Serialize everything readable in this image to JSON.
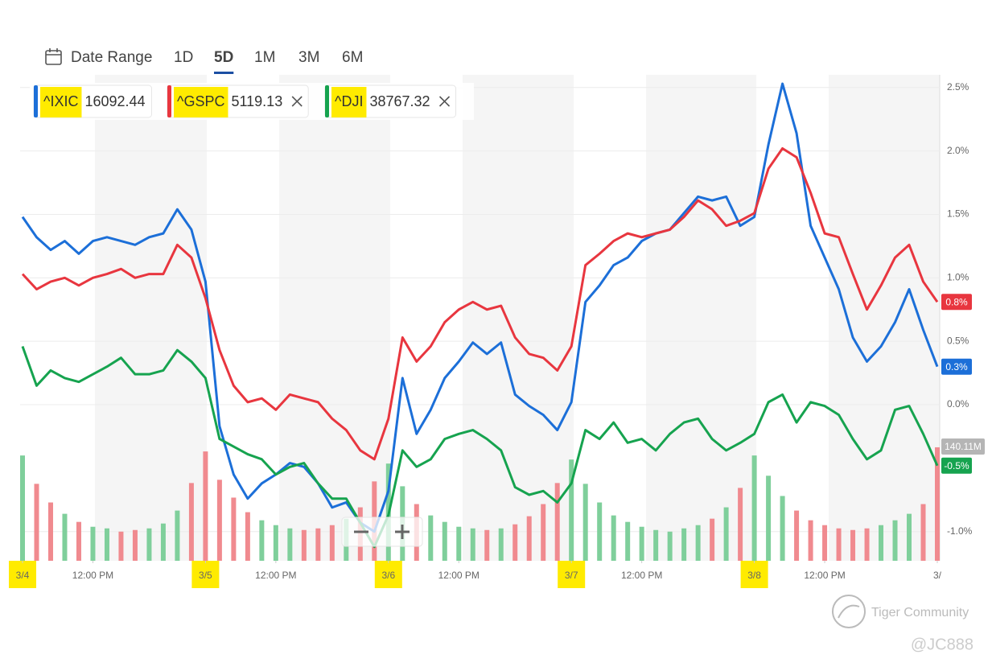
{
  "nav": {
    "label": "Date Range",
    "ranges": [
      "1D",
      "5D",
      "1M",
      "3M",
      "6M"
    ],
    "selected": 1
  },
  "chart_data": {
    "type": "line",
    "x": [
      0,
      1,
      2,
      3,
      4,
      5,
      6,
      7,
      8,
      9,
      10,
      11,
      12,
      13,
      14,
      15,
      16,
      17,
      18,
      19,
      20,
      21,
      22,
      23,
      24,
      25,
      26,
      27,
      28,
      29,
      30,
      31,
      32,
      33,
      34,
      35,
      36,
      37,
      38,
      39,
      40,
      41,
      42,
      43,
      44,
      45,
      46,
      47,
      48,
      49,
      50,
      51,
      52,
      53,
      54,
      55,
      56,
      57,
      58,
      59,
      60,
      61,
      62,
      63,
      64,
      65
    ],
    "xlim": [
      0,
      65
    ],
    "xticks": [
      {
        "value": 0,
        "label": "3/4"
      },
      {
        "value": 5,
        "label": "12:00 PM"
      },
      {
        "value": 13,
        "label": "3/5"
      },
      {
        "value": 18,
        "label": "12:00 PM"
      },
      {
        "value": 26,
        "label": "3/6"
      },
      {
        "value": 31,
        "label": "12:00 PM"
      },
      {
        "value": 39,
        "label": "3/7"
      },
      {
        "value": 44,
        "label": "12:00 PM"
      },
      {
        "value": 52,
        "label": "3/8"
      },
      {
        "value": 57,
        "label": "12:00 PM"
      },
      {
        "value": 65,
        "label": "3/"
      }
    ],
    "ylim": [
      -1.23,
      2.6
    ],
    "yticks": [
      {
        "value": 2.5,
        "label": "2.5%"
      },
      {
        "value": 2.0,
        "label": "2.0%"
      },
      {
        "value": 1.5,
        "label": "1.5%"
      },
      {
        "value": 1.0,
        "label": "1.0%"
      },
      {
        "value": 0.5,
        "label": "0.5%"
      },
      {
        "value": 0,
        "label": "0.0%"
      },
      {
        "value": -1.0,
        "label": "-1.0%"
      }
    ],
    "grid": true,
    "series": [
      {
        "name": "^IXIC",
        "quote": "16092.44",
        "color": "#1c6fd8",
        "last_label": "0.3%",
        "values": [
          1.48,
          1.32,
          1.22,
          1.29,
          1.19,
          1.29,
          1.32,
          1.29,
          1.26,
          1.32,
          1.35,
          1.54,
          1.38,
          0.97,
          -0.17,
          -0.55,
          -0.74,
          -0.62,
          -0.55,
          -0.46,
          -0.49,
          -0.62,
          -0.81,
          -0.77,
          -0.93,
          -1.0,
          -0.68,
          0.21,
          -0.23,
          -0.04,
          0.21,
          0.34,
          0.49,
          0.4,
          0.49,
          0.08,
          -0.01,
          -0.08,
          -0.2,
          0.02,
          0.81,
          0.94,
          1.1,
          1.16,
          1.29,
          1.35,
          1.38,
          1.51,
          1.64,
          1.61,
          1.64,
          1.41,
          1.48,
          2.05,
          2.53,
          2.14,
          1.41,
          1.16,
          0.91,
          0.53,
          0.34,
          0.46,
          0.65,
          0.91,
          0.59,
          0.3
        ]
      },
      {
        "name": "^GSPC",
        "quote": "5119.13",
        "color": "#e8363f",
        "last_label": "0.8%",
        "values": [
          1.03,
          0.91,
          0.97,
          1.0,
          0.94,
          1.0,
          1.03,
          1.07,
          1.0,
          1.03,
          1.03,
          1.26,
          1.16,
          0.84,
          0.43,
          0.15,
          0.02,
          0.05,
          -0.04,
          0.08,
          0.05,
          0.02,
          -0.11,
          -0.2,
          -0.36,
          -0.43,
          -0.11,
          0.53,
          0.34,
          0.46,
          0.65,
          0.75,
          0.81,
          0.75,
          0.78,
          0.53,
          0.4,
          0.37,
          0.27,
          0.46,
          1.1,
          1.19,
          1.29,
          1.35,
          1.32,
          1.35,
          1.38,
          1.48,
          1.61,
          1.54,
          1.41,
          1.45,
          1.51,
          1.86,
          2.02,
          1.95,
          1.67,
          1.35,
          1.32,
          1.03,
          0.75,
          0.94,
          1.16,
          1.26,
          0.97,
          0.81
        ]
      },
      {
        "name": "^DJI",
        "quote": "38767.32",
        "color": "#16a34f",
        "last_label": "-0.5%",
        "values": [
          0.46,
          0.15,
          0.27,
          0.21,
          0.18,
          0.24,
          0.3,
          0.37,
          0.24,
          0.24,
          0.27,
          0.43,
          0.34,
          0.21,
          -0.27,
          -0.33,
          -0.39,
          -0.43,
          -0.55,
          -0.49,
          -0.46,
          -0.62,
          -0.74,
          -0.74,
          -0.93,
          -1.12,
          -0.87,
          -0.36,
          -0.49,
          -0.43,
          -0.27,
          -0.23,
          -0.2,
          -0.27,
          -0.36,
          -0.65,
          -0.71,
          -0.68,
          -0.77,
          -0.62,
          -0.2,
          -0.27,
          -0.14,
          -0.3,
          -0.27,
          -0.36,
          -0.23,
          -0.14,
          -0.11,
          -0.27,
          -0.36,
          -0.3,
          -0.23,
          0.02,
          0.08,
          -0.14,
          0.02,
          -0.01,
          -0.08,
          -0.27,
          -0.43,
          -0.36,
          -0.04,
          -0.01,
          -0.23,
          -0.48
        ]
      }
    ],
    "volume": {
      "ylim": [
        0,
        600
      ],
      "up_color": "#7fcf9b",
      "down_color": "#f08a8f",
      "last_label": "140.11M",
      "values": [
        130,
        95,
        72,
        58,
        48,
        42,
        40,
        36,
        38,
        40,
        46,
        62,
        96,
        135,
        100,
        78,
        60,
        50,
        44,
        40,
        38,
        40,
        44,
        52,
        66,
        98,
        120,
        92,
        70,
        56,
        48,
        42,
        40,
        38,
        40,
        45,
        55,
        70,
        96,
        125,
        95,
        72,
        56,
        48,
        42,
        38,
        36,
        40,
        44,
        52,
        66,
        90,
        130,
        105,
        80,
        62,
        50,
        44,
        40,
        38,
        40,
        44,
        50,
        58,
        70,
        140.11
      ]
    }
  },
  "watermark": {
    "brand": "Tiger Community",
    "handle": "@JC888"
  }
}
